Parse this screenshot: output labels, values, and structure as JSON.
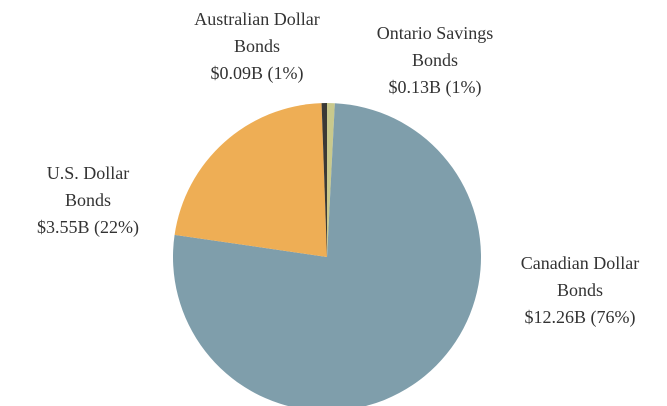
{
  "chart_data": {
    "type": "pie",
    "categories": [
      "Ontario Savings Bonds",
      "Canadian Dollar Bonds",
      "U.S. Dollar Bonds",
      "Australian Dollar Bonds"
    ],
    "values": [
      0.13,
      12.26,
      3.55,
      0.09
    ],
    "value_labels": [
      "$0.13B (1%)",
      "$12.26B (76%)",
      "$3.55B (22%)",
      "$0.09B (1%)"
    ],
    "colors": [
      "#c9c98c",
      "#7f9eab",
      "#eeae55",
      "#3b3a36"
    ]
  }
}
